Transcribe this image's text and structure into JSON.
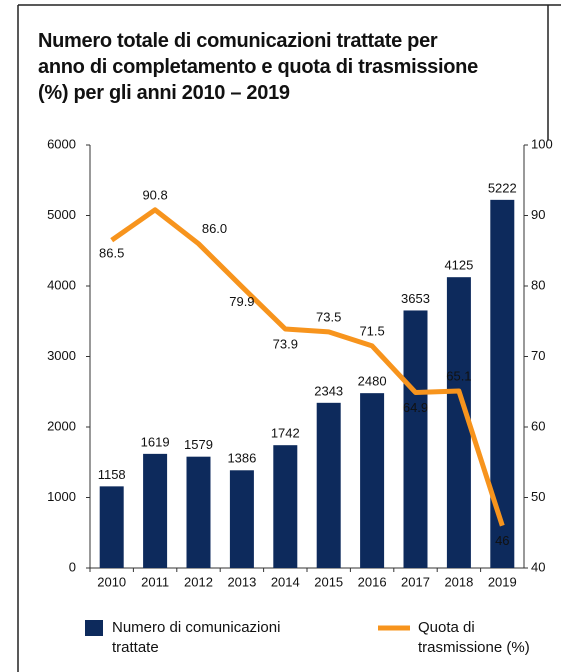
{
  "chart_data": {
    "type": "bar_line",
    "title": "Numero totale di comunicazioni trattate per anno di completamento e quota di trasmissione (%) per gli anni 2010 – 2019",
    "categories": [
      "2010",
      "2011",
      "2012",
      "2013",
      "2014",
      "2015",
      "2016",
      "2017",
      "2018",
      "2019"
    ],
    "series": [
      {
        "name": "Numero di comunicazioni trattate",
        "type": "bar",
        "color": "#0d2a5c",
        "values": [
          1158,
          1619,
          1579,
          1386,
          1742,
          2343,
          2480,
          3653,
          4125,
          5222
        ]
      },
      {
        "name": "Quota di trasmissione (%)",
        "type": "line",
        "axis": "y2",
        "color": "#f7941d",
        "values": [
          86.5,
          90.8,
          86.0,
          79.9,
          73.9,
          73.5,
          71.5,
          64.9,
          65.1,
          46
        ],
        "value_labels": [
          "86.5",
          "90.8",
          "86.0",
          "79.9",
          "73.9",
          "73.5",
          "71.5",
          "64.9",
          "65.1",
          "46"
        ]
      }
    ],
    "ylim": [
      0,
      6000
    ],
    "yticks": [
      0,
      1000,
      2000,
      3000,
      4000,
      5000,
      6000
    ],
    "y2lim": [
      40,
      100
    ],
    "y2ticks": [
      40,
      50,
      60,
      70,
      80,
      90,
      100
    ]
  }
}
